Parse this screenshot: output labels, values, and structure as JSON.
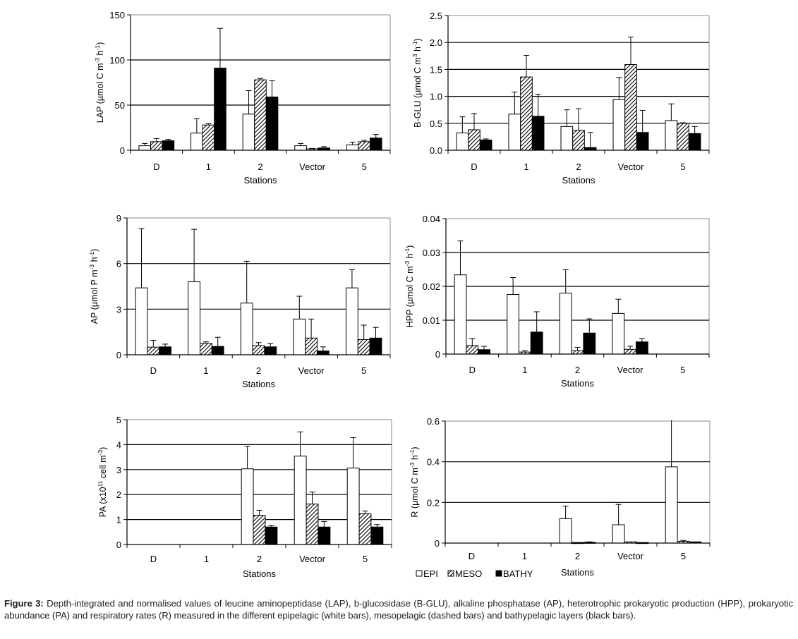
{
  "figure": {
    "series": [
      {
        "name": "EPI",
        "fill": "#ffffff",
        "pattern": "none"
      },
      {
        "name": "MESO",
        "fill": "#ffffff",
        "pattern": "diagonal-hatch"
      },
      {
        "name": "BATHY",
        "fill": "#000000",
        "pattern": "none"
      }
    ],
    "legend": {
      "items": [
        "EPI",
        "MESO",
        "BATHY"
      ],
      "placement": "bottom-left of panel R"
    },
    "caption": {
      "label": "Figure 3:",
      "text": " Depth-integrated and normalised values of leucine aminopeptidase (LAP), b-glucosidase (B-GLU), alkaline phosphatase (AP), heterotrophic prokaryotic production (HPP), prokaryotic abundance (PA) and respiratory rates (R) measured in the different epipelagic (white bars), mesopelagic (dashed bars) and bathypelagic layers (black bars)."
    }
  },
  "chart_data": [
    {
      "id": "lap",
      "type": "bar",
      "title": "",
      "xlabel": "Stations",
      "ylabel_main": "LAP (µmol C m",
      "ylabel_sup1": "-3",
      "ylabel_mid": " h",
      "ylabel_sup2": "-1",
      "ylabel_end": ")",
      "categories": [
        "D",
        "1",
        "2",
        "Vector",
        "5"
      ],
      "ylim": [
        0,
        150
      ],
      "yticks": [
        0,
        50,
        100,
        150
      ],
      "ytick_labels": [
        "0",
        "50",
        "100",
        "150"
      ],
      "grid": true,
      "series": [
        {
          "name": "EPI",
          "values": [
            5,
            19,
            40,
            5,
            6
          ],
          "errors": [
            2.5,
            16,
            26,
            2.5,
            3
          ]
        },
        {
          "name": "MESO",
          "values": [
            9.5,
            28,
            78,
            1.5,
            9.5
          ],
          "errors": [
            3.5,
            1.5,
            1.5,
            0.5,
            1.5
          ]
        },
        {
          "name": "BATHY",
          "values": [
            10.5,
            91,
            59,
            2.5,
            13.5
          ],
          "errors": [
            1.5,
            44,
            18,
            1.5,
            4
          ]
        }
      ]
    },
    {
      "id": "bglu",
      "type": "bar",
      "title": "",
      "xlabel": "Stations",
      "ylabel_main": "B-GLU (µmol C m",
      "ylabel_sup1": "3",
      "ylabel_mid": "  h",
      "ylabel_sup2": "-1",
      "ylabel_end": ")",
      "categories": [
        "D",
        "1",
        "2",
        "Vector",
        "5"
      ],
      "ylim": [
        0,
        2.5
      ],
      "yticks": [
        0,
        0.5,
        1.0,
        1.5,
        2.0,
        2.5
      ],
      "ytick_labels": [
        "0.0",
        "0.5",
        "1.0",
        "1.5",
        "2.0",
        "2.5"
      ],
      "grid": true,
      "series": [
        {
          "name": "EPI",
          "values": [
            0.32,
            0.67,
            0.44,
            0.94,
            0.55
          ],
          "errors": [
            0.3,
            0.41,
            0.31,
            0.41,
            0.31
          ]
        },
        {
          "name": "MESO",
          "values": [
            0.38,
            1.36,
            0.37,
            1.59,
            0.5
          ],
          "errors": [
            0.3,
            0.4,
            0.4,
            0.51,
            0.01
          ]
        },
        {
          "name": "BATHY",
          "values": [
            0.19,
            0.63,
            0.05,
            0.33,
            0.31
          ],
          "errors": [
            0.02,
            0.41,
            0.28,
            0.41,
            0.13
          ]
        }
      ]
    },
    {
      "id": "ap",
      "type": "bar",
      "title": "",
      "xlabel": "Stations",
      "ylabel_main": "AP (µmol P m",
      "ylabel_sup1": "-3",
      "ylabel_mid": " h",
      "ylabel_sup2": "-1",
      "ylabel_end": ")",
      "categories": [
        "D",
        "1",
        "2",
        "Vector",
        "5"
      ],
      "ylim": [
        0,
        9
      ],
      "yticks": [
        0,
        3,
        6,
        9
      ],
      "ytick_labels": [
        "0",
        "3",
        "6",
        "9"
      ],
      "grid": true,
      "series": [
        {
          "name": "EPI",
          "values": [
            4.4,
            4.8,
            3.4,
            2.35,
            4.4
          ],
          "errors": [
            3.9,
            3.45,
            2.75,
            1.5,
            1.2
          ]
        },
        {
          "name": "MESO",
          "values": [
            0.5,
            0.75,
            0.6,
            1.1,
            1.0
          ],
          "errors": [
            0.45,
            0.1,
            0.2,
            1.25,
            0.95
          ]
        },
        {
          "name": "BATHY",
          "values": [
            0.52,
            0.55,
            0.52,
            0.25,
            1.1
          ],
          "errors": [
            0.18,
            0.6,
            0.22,
            0.27,
            0.7
          ]
        }
      ]
    },
    {
      "id": "hpp",
      "type": "bar",
      "title": "",
      "xlabel": "Stations",
      "ylabel_main": "HPP (µmol C m",
      "ylabel_sup1": "-3",
      "ylabel_mid": " h",
      "ylabel_sup2": "-1",
      "ylabel_end": ")",
      "categories": [
        "D",
        "1",
        "2",
        "Vector",
        "5"
      ],
      "ylim": [
        0,
        0.04
      ],
      "yticks": [
        0,
        0.01,
        0.02,
        0.03,
        0.04
      ],
      "ytick_labels": [
        "0",
        "0.01",
        "0.02",
        "0.03",
        "0.04"
      ],
      "grid": true,
      "series": [
        {
          "name": "EPI",
          "values": [
            0.0234,
            0.0176,
            0.018,
            0.012,
            null
          ],
          "errors": [
            0.01,
            0.005,
            0.0069,
            0.0042,
            null
          ]
        },
        {
          "name": "MESO",
          "values": [
            0.0025,
            0.0006,
            0.001,
            0.0014,
            null
          ],
          "errors": [
            0.0021,
            0.0004,
            0.001,
            0.0009,
            null
          ]
        },
        {
          "name": "BATHY",
          "values": [
            0.0013,
            0.0065,
            0.0062,
            0.0036,
            null
          ],
          "errors": [
            0.001,
            0.006,
            0.0042,
            0.001,
            null
          ]
        }
      ]
    },
    {
      "id": "pa",
      "type": "bar",
      "title": "",
      "xlabel": "Stations",
      "ylabel_main": "PA (x10",
      "ylabel_sup1": "11",
      "ylabel_mid": " cell m",
      "ylabel_sup2": "-3",
      "ylabel_end": ")",
      "categories": [
        "D",
        "1",
        "2",
        "Vector",
        "5"
      ],
      "ylim": [
        0,
        5
      ],
      "yticks": [
        0,
        1,
        2,
        3,
        4,
        5
      ],
      "ytick_labels": [
        "0",
        "1",
        "2",
        "3",
        "4",
        "5"
      ],
      "grid": true,
      "series": [
        {
          "name": "EPI",
          "values": [
            null,
            null,
            3.03,
            3.54,
            3.06
          ],
          "errors": [
            null,
            null,
            0.9,
            0.97,
            1.22
          ]
        },
        {
          "name": "MESO",
          "values": [
            null,
            null,
            1.17,
            1.62,
            1.23
          ],
          "errors": [
            null,
            null,
            0.2,
            0.48,
            0.11
          ]
        },
        {
          "name": "BATHY",
          "values": [
            null,
            null,
            0.7,
            0.7,
            0.7
          ],
          "errors": [
            null,
            null,
            0.05,
            0.22,
            0.1
          ]
        }
      ]
    },
    {
      "id": "r",
      "type": "bar",
      "title": "",
      "xlabel": "Stations",
      "ylabel_main": "R (µmol C m",
      "ylabel_sup1": "-3",
      "ylabel_mid": " h",
      "ylabel_sup2": "-1",
      "ylabel_end": ")",
      "categories": [
        "D",
        "1",
        "2",
        "Vector",
        "5"
      ],
      "ylim": [
        0,
        0.6
      ],
      "yticks": [
        0,
        0.2,
        0.4,
        0.6
      ],
      "ytick_labels": [
        "0",
        "0.2",
        "0.4",
        "0.6"
      ],
      "grid": true,
      "series": [
        {
          "name": "EPI",
          "values": [
            null,
            null,
            0.12,
            0.09,
            0.375
          ],
          "errors": [
            null,
            null,
            0.062,
            0.1,
            0.3
          ]
        },
        {
          "name": "MESO",
          "values": [
            null,
            null,
            0.003,
            0.006,
            0.009
          ],
          "errors": [
            null,
            null,
            0,
            0,
            0.004
          ]
        },
        {
          "name": "BATHY",
          "values": [
            null,
            null,
            0.004,
            0.003,
            0.006
          ],
          "errors": [
            null,
            null,
            0.002,
            0,
            0
          ]
        }
      ]
    }
  ]
}
